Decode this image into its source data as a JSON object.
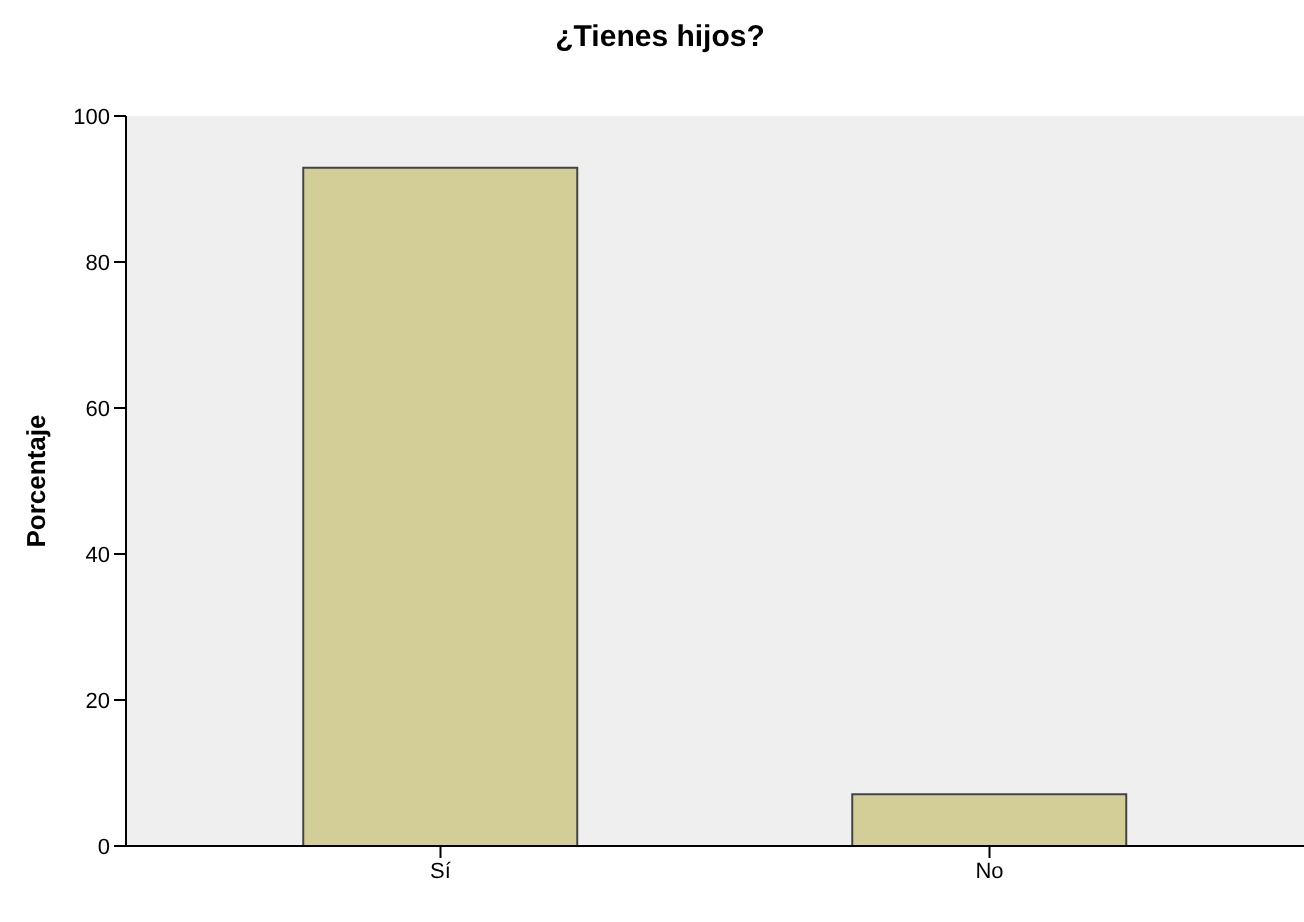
{
  "chart_data": {
    "type": "bar",
    "title": "¿Tienes hijos?",
    "ylabel": "Porcentaje",
    "categories": [
      "Sí",
      "No"
    ],
    "values": [
      92.9,
      7.1
    ],
    "color": "#d3ce97",
    "ylim": [
      0,
      100
    ],
    "yticks": [
      0,
      20,
      40,
      60,
      80,
      100
    ],
    "grid": false
  }
}
